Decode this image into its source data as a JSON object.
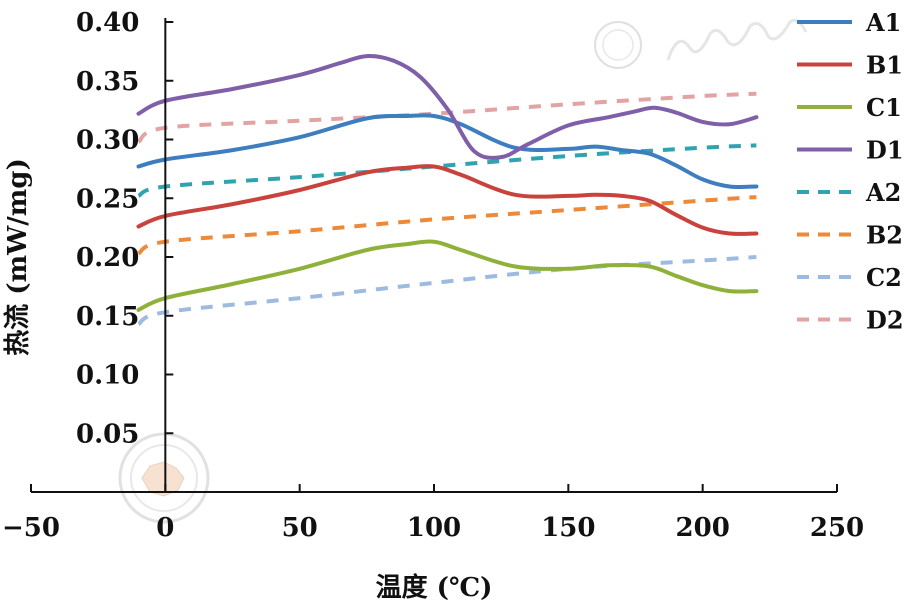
{
  "chart_data": {
    "type": "line",
    "xlabel": "温度 (℃)",
    "ylabel": "热流 (mW/mg)",
    "xlim": [
      -50,
      250
    ],
    "ylim": [
      0,
      0.4
    ],
    "x_ticks": [
      "−50",
      "0",
      "50",
      "100",
      "150",
      "200",
      "250"
    ],
    "y_ticks": [
      "0.05",
      "0.10",
      "0.15",
      "0.20",
      "0.25",
      "0.30",
      "0.35",
      "0.40"
    ],
    "x_tick_values": [
      -50,
      0,
      50,
      100,
      150,
      200,
      250
    ],
    "y_tick_values": [
      0.05,
      0.1,
      0.15,
      0.2,
      0.25,
      0.3,
      0.35,
      0.4
    ],
    "grid": false,
    "legend_position": "right",
    "series": [
      {
        "name": "A1",
        "color": "#3d7ebf",
        "style": "solid",
        "points": [
          [
            -10,
            0.277
          ],
          [
            0,
            0.283
          ],
          [
            25,
            0.291
          ],
          [
            50,
            0.302
          ],
          [
            75,
            0.318
          ],
          [
            90,
            0.32
          ],
          [
            100,
            0.32
          ],
          [
            110,
            0.313
          ],
          [
            130,
            0.293
          ],
          [
            150,
            0.292
          ],
          [
            160,
            0.294
          ],
          [
            170,
            0.291
          ],
          [
            180,
            0.288
          ],
          [
            190,
            0.278
          ],
          [
            200,
            0.266
          ],
          [
            210,
            0.26
          ],
          [
            220,
            0.26
          ]
        ]
      },
      {
        "name": "B1",
        "color": "#c9433c",
        "style": "solid",
        "points": [
          [
            -10,
            0.226
          ],
          [
            0,
            0.235
          ],
          [
            25,
            0.245
          ],
          [
            50,
            0.257
          ],
          [
            75,
            0.272
          ],
          [
            90,
            0.276
          ],
          [
            100,
            0.277
          ],
          [
            110,
            0.27
          ],
          [
            130,
            0.253
          ],
          [
            150,
            0.252
          ],
          [
            160,
            0.253
          ],
          [
            170,
            0.252
          ],
          [
            180,
            0.248
          ],
          [
            190,
            0.236
          ],
          [
            200,
            0.225
          ],
          [
            210,
            0.22
          ],
          [
            220,
            0.22
          ]
        ]
      },
      {
        "name": "C1",
        "color": "#8fb13a",
        "style": "solid",
        "points": [
          [
            -10,
            0.155
          ],
          [
            0,
            0.165
          ],
          [
            25,
            0.177
          ],
          [
            50,
            0.19
          ],
          [
            75,
            0.206
          ],
          [
            90,
            0.211
          ],
          [
            100,
            0.213
          ],
          [
            110,
            0.206
          ],
          [
            130,
            0.192
          ],
          [
            150,
            0.19
          ],
          [
            165,
            0.193
          ],
          [
            180,
            0.192
          ],
          [
            190,
            0.184
          ],
          [
            200,
            0.176
          ],
          [
            210,
            0.171
          ],
          [
            220,
            0.171
          ]
        ]
      },
      {
        "name": "D1",
        "color": "#7f5fa8",
        "style": "solid",
        "points": [
          [
            -10,
            0.322
          ],
          [
            0,
            0.333
          ],
          [
            25,
            0.343
          ],
          [
            50,
            0.355
          ],
          [
            65,
            0.365
          ],
          [
            75,
            0.371
          ],
          [
            85,
            0.367
          ],
          [
            95,
            0.353
          ],
          [
            105,
            0.326
          ],
          [
            115,
            0.29
          ],
          [
            125,
            0.285
          ],
          [
            135,
            0.296
          ],
          [
            150,
            0.312
          ],
          [
            165,
            0.319
          ],
          [
            175,
            0.324
          ],
          [
            182,
            0.327
          ],
          [
            190,
            0.323
          ],
          [
            200,
            0.315
          ],
          [
            210,
            0.313
          ],
          [
            220,
            0.319
          ]
        ]
      },
      {
        "name": "A2",
        "color": "#2fa3b2",
        "style": "dashed",
        "points": [
          [
            -10,
            0.252
          ],
          [
            0,
            0.26
          ],
          [
            50,
            0.268
          ],
          [
            100,
            0.277
          ],
          [
            150,
            0.286
          ],
          [
            200,
            0.293
          ],
          [
            220,
            0.295
          ]
        ]
      },
      {
        "name": "B2",
        "color": "#ec8a3a",
        "style": "dashed",
        "points": [
          [
            -10,
            0.203
          ],
          [
            0,
            0.213
          ],
          [
            50,
            0.222
          ],
          [
            100,
            0.232
          ],
          [
            150,
            0.24
          ],
          [
            200,
            0.248
          ],
          [
            220,
            0.251
          ]
        ]
      },
      {
        "name": "C2",
        "color": "#9dbbe0",
        "style": "dashed",
        "points": [
          [
            -10,
            0.143
          ],
          [
            0,
            0.153
          ],
          [
            50,
            0.165
          ],
          [
            100,
            0.178
          ],
          [
            150,
            0.19
          ],
          [
            200,
            0.197
          ],
          [
            220,
            0.2
          ]
        ]
      },
      {
        "name": "D2",
        "color": "#e2a3a3",
        "style": "dashed",
        "points": [
          [
            -10,
            0.298
          ],
          [
            0,
            0.31
          ],
          [
            50,
            0.316
          ],
          [
            100,
            0.322
          ],
          [
            150,
            0.33
          ],
          [
            200,
            0.337
          ],
          [
            220,
            0.339
          ]
        ]
      }
    ]
  }
}
